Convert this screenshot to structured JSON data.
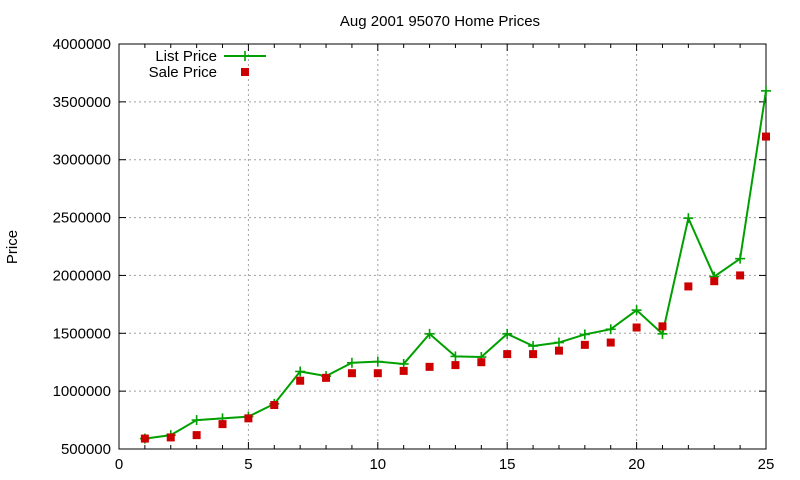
{
  "chart_data": {
    "type": "line",
    "title": "Aug 2001 95070 Home Prices",
    "xlabel": "",
    "ylabel": "Price",
    "xlim": [
      0,
      25
    ],
    "ylim": [
      500000,
      4000000
    ],
    "x_ticks": [
      "0",
      "5",
      "10",
      "15",
      "20",
      "25"
    ],
    "y_ticks": [
      "500000",
      "1000000",
      "1500000",
      "2000000",
      "2500000",
      "3000000",
      "3500000",
      "4000000"
    ],
    "grid": true,
    "legend_position": "top-left",
    "x": [
      1,
      2,
      3,
      4,
      5,
      6,
      7,
      8,
      9,
      10,
      11,
      12,
      13,
      14,
      15,
      16,
      17,
      18,
      19,
      20,
      21,
      22,
      23,
      24,
      25
    ],
    "series": [
      {
        "name": "List Price",
        "style": "line-points",
        "color": "#00a000",
        "values": [
          590000,
          620000,
          750000,
          765000,
          780000,
          890000,
          1170000,
          1130000,
          1245000,
          1255000,
          1235000,
          1495000,
          1300000,
          1295000,
          1495000,
          1390000,
          1420000,
          1490000,
          1535000,
          1700000,
          1495000,
          2495000,
          1990000,
          2145000,
          3595000
        ]
      },
      {
        "name": "Sale Price",
        "style": "points",
        "color": "#cc0000",
        "values": [
          590000,
          600000,
          620000,
          715000,
          765000,
          880000,
          1090000,
          1115000,
          1155000,
          1155000,
          1175000,
          1210000,
          1225000,
          1250000,
          1320000,
          1320000,
          1350000,
          1400000,
          1420000,
          1550000,
          1560000,
          1905000,
          1950000,
          2000000,
          3200000
        ]
      }
    ]
  }
}
